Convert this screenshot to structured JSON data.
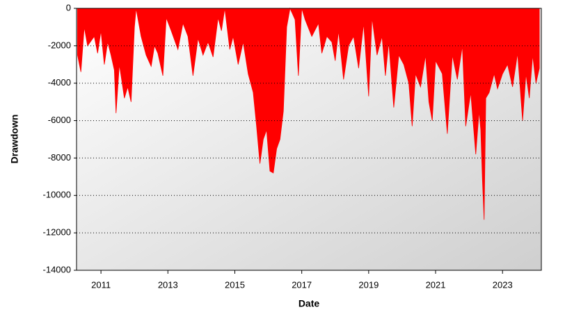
{
  "chart_data": {
    "type": "area",
    "xlabel": "Date",
    "ylabel": "Drawdown",
    "color": "#ff0000",
    "grid": true,
    "xlim": [
      2010.27,
      2024.16
    ],
    "xticks": [
      2011,
      2013,
      2015,
      2017,
      2019,
      2021,
      2023
    ],
    "ylim": [
      -14000,
      0
    ],
    "yticks": [
      0,
      -2000,
      -4000,
      -6000,
      -8000,
      -10000,
      -12000,
      -14000
    ],
    "x": [
      2010.3,
      2010.4,
      2010.5,
      2010.6,
      2010.8,
      2010.9,
      2011.0,
      2011.1,
      2011.2,
      2011.3,
      2011.4,
      2011.45,
      2011.55,
      2011.7,
      2011.8,
      2011.9,
      2012.0,
      2012.05,
      2012.2,
      2012.35,
      2012.5,
      2012.6,
      2012.7,
      2012.85,
      2012.95,
      2013.1,
      2013.3,
      2013.45,
      2013.6,
      2013.75,
      2013.9,
      2014.05,
      2014.2,
      2014.35,
      2014.5,
      2014.6,
      2014.7,
      2014.85,
      2014.95,
      2015.1,
      2015.25,
      2015.4,
      2015.55,
      2015.65,
      2015.75,
      2015.85,
      2015.95,
      2016.05,
      2016.15,
      2016.25,
      2016.35,
      2016.45,
      2016.55,
      2016.65,
      2016.8,
      2016.9,
      2017.0,
      2017.1,
      2017.3,
      2017.5,
      2017.6,
      2017.75,
      2017.9,
      2018.0,
      2018.1,
      2018.25,
      2018.4,
      2018.55,
      2018.7,
      2018.85,
      2019.0,
      2019.1,
      2019.25,
      2019.4,
      2019.5,
      2019.6,
      2019.75,
      2019.9,
      2020.05,
      2020.2,
      2020.3,
      2020.4,
      2020.55,
      2020.7,
      2020.8,
      2020.9,
      2021.0,
      2021.2,
      2021.35,
      2021.5,
      2021.65,
      2021.8,
      2021.9,
      2022.05,
      2022.2,
      2022.3,
      2022.35,
      2022.4,
      2022.45,
      2022.5,
      2022.6,
      2022.75,
      2022.85,
      2023.0,
      2023.15,
      2023.3,
      2023.45,
      2023.6,
      2023.7,
      2023.8,
      2023.9,
      2024.0,
      2024.1
    ],
    "values": [
      -2500,
      -3400,
      -1000,
      -2000,
      -1500,
      -2400,
      -1200,
      -3000,
      -1800,
      -2500,
      -3300,
      -5600,
      -3000,
      -4800,
      -4200,
      -5000,
      -1000,
      0,
      -1500,
      -2500,
      -3100,
      -2000,
      -2400,
      -3600,
      -500,
      -1200,
      -2200,
      -800,
      -1500,
      -3600,
      -1600,
      -2500,
      -1800,
      -2600,
      -500,
      -1200,
      0,
      -2200,
      -1500,
      -3000,
      -1800,
      -3500,
      -4500,
      -6300,
      -8300,
      -7000,
      -6500,
      -8700,
      -8800,
      -7500,
      -7000,
      -5500,
      -1000,
      0,
      -600,
      -3600,
      0,
      -600,
      -1500,
      -800,
      -2400,
      -1500,
      -1800,
      -2800,
      -1200,
      -3800,
      -2000,
      -1500,
      -3200,
      -800,
      -4700,
      -500,
      -2500,
      -1500,
      -3600,
      -1800,
      -5300,
      -2500,
      -3000,
      -4000,
      -6300,
      -3500,
      -4200,
      -2500,
      -5000,
      -6000,
      -2800,
      -3500,
      -6700,
      -2500,
      -3800,
      -2000,
      -6300,
      -4500,
      -7800,
      -5500,
      -6500,
      -9200,
      -11300,
      -4800,
      -4500,
      -3500,
      -4300,
      -3500,
      -3000,
      -4200,
      -2400,
      -6000,
      -3500,
      -4800,
      -2500,
      -4000,
      -3200
    ]
  }
}
